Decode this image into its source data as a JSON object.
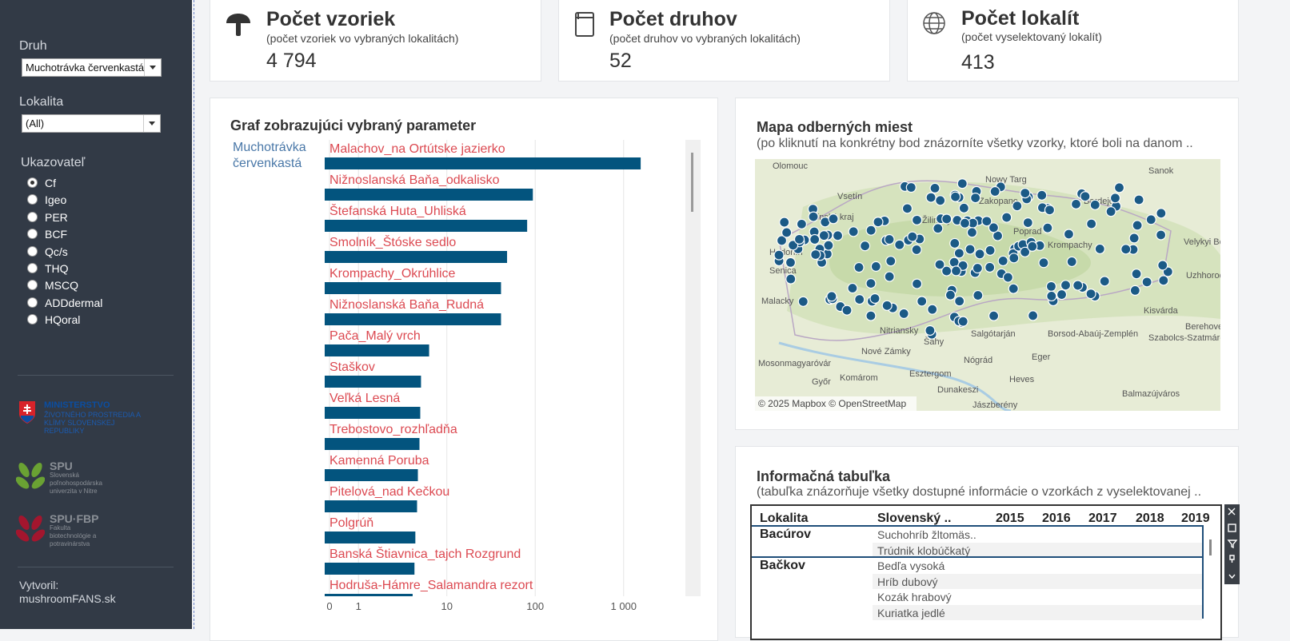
{
  "sidebar": {
    "druh_label": "Druh",
    "druh_value": "Muchotrávka červenkastá",
    "lokalita_label": "Lokalita",
    "lokalita_value": "(All)",
    "ukazovatel_label": "Ukazovateľ",
    "options": [
      "Cf",
      "Igeo",
      "PER",
      "BCF",
      "Qc/s",
      "THQ",
      "MSCQ",
      "ADDdermal",
      "HQoral"
    ],
    "selected": "Cf",
    "logos": [
      {
        "name": "MINISTERSTVO",
        "text": "ŽIVOTNÉHO PROSTREDIA A KLÍMY SLOVENSKEJ REPUBLIKY"
      },
      {
        "name": "SPU",
        "text": "Slovenská poľnohospodárska univerzita v Nitre"
      },
      {
        "name": "SPU·FBP",
        "text": "Fakulta biotechnológie a potravinárstva"
      }
    ],
    "creator_label": "Vytvoril:",
    "creator": "mushroomFANS.sk"
  },
  "kpis": [
    {
      "title": "Počet vzoriek",
      "subtitle": "(počet vzoriek vo vybraných lokalitách)",
      "value": "4 794"
    },
    {
      "title": "Počet druhov",
      "subtitle": "(počet druhov vo vybraných lokalitách)",
      "value": "52"
    },
    {
      "title": "Počet lokalít",
      "subtitle": "(počet vyselektovaný lokalít)",
      "value": "413"
    }
  ],
  "chart_data": {
    "type": "bar",
    "orientation": "horizontal",
    "title": "Graf zobrazujúci vybraný parameter",
    "group_label": "Muchotrávka červenkastá",
    "categories": [
      "Malachov_na Ortútske jazierko",
      "Nižnoslanská Baňa_odkalisko",
      "Štefanská Huta_Uhliská",
      "Smolník_Štóske sedlo",
      "Krompachy_Okrúhlice",
      "Nižnoslanská Baňa_Rudná",
      "Pača_Malý vrch",
      "Staškov",
      "Veľká Lesná",
      "Trebostovo_rozhľadňa",
      "Kamenná Poruba",
      "Pitelová_nad Kečkou",
      "Polgrúň",
      "Banská Štiavnica_tajch Rozgrund",
      "Hodruša-Hámre_Salamandra rezort"
    ],
    "values": [
      1560,
      94,
      81,
      48,
      41,
      41,
      6.3,
      5.1,
      5.0,
      4.9,
      4.7,
      4.6,
      4.4,
      4.3,
      4.1
    ],
    "color": "#03547e",
    "label_color": "#dc4a52",
    "xscale": "log",
    "xlim": [
      0.47,
      5000
    ],
    "xticks": [
      0,
      1,
      10,
      100,
      {
        "value": 1000,
        "label": "1 000"
      }
    ],
    "grid": true
  },
  "map": {
    "title": "Mapa odberných miest",
    "subtitle": "(po kliknutí na konkrétny bod znázorníte všetky vzorky, ktoré boli na danom ..",
    "attribution": "© 2025 Mapbox © OpenStreetMap",
    "labels": [
      "Olomouc",
      "Nowy Targ",
      "Sanok",
      "Vsetín",
      "Zakopane",
      "Bardejov",
      "Zlínský kraj",
      "Žilinský",
      "Poprad",
      "Krompachy",
      "Velykyi Bereznyi",
      "Hodonín",
      "Uzhhorod",
      "Senica",
      "Malacky",
      "Nitriansky",
      "Šahy",
      "Salgótarján",
      "Berehove",
      "Borsod-Abaúj-Zemplén",
      "Nové Zámky",
      "Nógrád",
      "Eger",
      "Szabolcs-Szatmár-Bereg",
      "Kisvárda",
      "Mosonmagyaróvár",
      "Komárom",
      "Esztergom",
      "Heves",
      "Győr",
      "Dunakeszi",
      "Balmazújváros",
      "Jászberény"
    ]
  },
  "table": {
    "title": "Informačná tabuľka",
    "subtitle": "(tabuľka znázorňuje všetky dostupné informácie o vzorkách z vyselektovanej ..",
    "headers": [
      "Lokalita",
      "Slovenský ..",
      "2015",
      "2016",
      "2017",
      "2018",
      "2019"
    ],
    "rows": [
      {
        "lokalita": "Bacúrov",
        "species": [
          "Suchohríb žltomäs..",
          "Trúdnik klobúčkatý"
        ]
      },
      {
        "lokalita": "Bačkov",
        "species": [
          "Bedľa vysoká",
          "Hríb dubový",
          "Kozák hrabový",
          "Kuriatka jedlé"
        ]
      }
    ]
  }
}
